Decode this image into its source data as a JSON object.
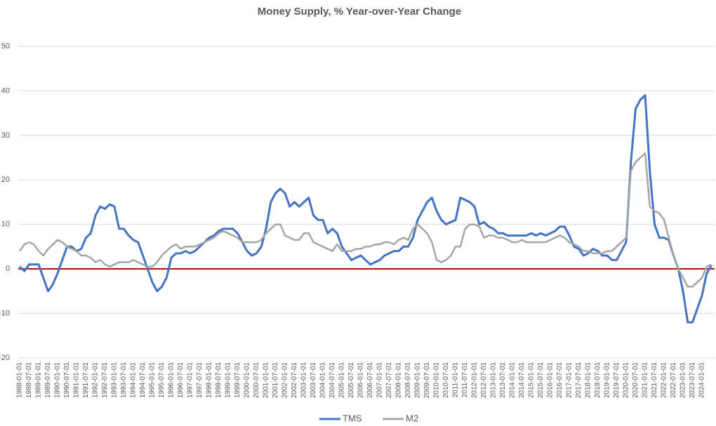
{
  "chart_data": {
    "type": "line",
    "title": "Money Supply, % Year-over-Year Change",
    "x": [
      "1988-01-01",
      null,
      "1988-07-01",
      null,
      "1989-01-01",
      null,
      "1989-07-01",
      null,
      "1990-01-01",
      null,
      "1990-07-01",
      null,
      "1991-01-01",
      null,
      "1991-07-01",
      null,
      "1992-01-01",
      null,
      "1992-07-01",
      null,
      "1993-01-01",
      null,
      "1993-07-01",
      null,
      "1994-01-01",
      null,
      "1994-07-01",
      null,
      "1995-01-01",
      null,
      "1995-07-01",
      null,
      "1996-01-01",
      null,
      "1996-07-01",
      null,
      "1997-01-01",
      null,
      "1997-07-01",
      null,
      "1998-01-01",
      null,
      "1998-07-01",
      null,
      "1999-01-01",
      null,
      "1999-07-01",
      null,
      "2000-01-01",
      null,
      "2000-07-01",
      null,
      "2001-01-01",
      null,
      "2001-07-01",
      null,
      "2002-01-01",
      null,
      "2002-07-01",
      null,
      "2003-01-01",
      null,
      "2003-07-01",
      null,
      "2004-01-01",
      null,
      "2004-07-01",
      null,
      "2005-01-01",
      null,
      "2005-07-01",
      null,
      "2006-01-01",
      null,
      "2006-07-01",
      null,
      "2007-01-01",
      null,
      "2007-07-01",
      null,
      "2008-01-01",
      null,
      "2008-07-01",
      null,
      "2009-01-01",
      null,
      "2009-07-01",
      null,
      "2010-01-01",
      null,
      "2010-07-01",
      null,
      "2011-01-01",
      null,
      "2011-07-01",
      null,
      "2012-01-01",
      null,
      "2012-07-01",
      null,
      "2013-01-01",
      null,
      "2013-07-01",
      null,
      "2014-01-01",
      null,
      "2014-07-01",
      null,
      "2015-01-01",
      null,
      "2015-07-01",
      null,
      "2016-01-01",
      null,
      "2016-07-01",
      null,
      "2017-01-01",
      null,
      "2017-07-01",
      null,
      "2018-01-01",
      null,
      "2018-07-01",
      null,
      "2019-01-01",
      null,
      "2019-07-01",
      null,
      "2020-01-01",
      null,
      "2020-07-01",
      null,
      "2021-01-01",
      null,
      "2021-07-01",
      null,
      "2022-01-01",
      null,
      "2022-07-01",
      null,
      "2023-01-01",
      null,
      "2023-07-01",
      null,
      "2024-01-01",
      null,
      null
    ],
    "series": [
      {
        "name": "TMS",
        "color": "#4472c4",
        "values": [
          0.5,
          -0.5,
          1,
          1,
          1,
          -2,
          -5,
          -3.5,
          -1,
          2,
          5,
          5,
          4,
          4.5,
          7,
          8,
          12,
          14,
          13.5,
          14.5,
          14,
          9,
          9,
          7.5,
          6.5,
          6,
          3,
          0,
          -3,
          -5,
          -4,
          -2,
          2.5,
          3.5,
          3.5,
          4,
          3.5,
          4,
          5,
          6,
          7,
          7.5,
          8.5,
          9,
          9,
          9,
          8,
          6,
          4,
          3,
          3.5,
          5,
          9,
          15,
          17,
          18,
          17,
          14,
          15,
          14,
          15,
          16,
          12,
          11,
          11,
          8,
          9,
          8,
          5,
          3.5,
          2,
          2.5,
          3,
          2,
          1,
          1.5,
          2,
          3,
          3.5,
          4,
          4,
          5,
          5,
          7,
          11,
          13,
          15,
          16,
          13,
          11,
          10,
          10.5,
          11,
          16,
          15.5,
          15,
          14,
          10,
          10.5,
          9.5,
          9,
          8,
          8,
          7.5,
          7.5,
          7.5,
          7.5,
          7.5,
          8,
          7.5,
          8,
          7.5,
          8,
          8.5,
          9.5,
          9.5,
          7.5,
          5,
          4.5,
          3,
          3.5,
          4.5,
          4,
          3,
          3,
          2,
          2,
          4,
          6,
          24,
          36,
          38,
          39,
          22,
          10,
          7,
          7,
          6.5,
          3,
          0,
          -5,
          -12,
          -12,
          -9,
          -6,
          -1,
          0.8
        ]
      },
      {
        "name": "M2",
        "color": "#a5a5a5",
        "values": [
          4,
          5.5,
          6,
          5.5,
          4,
          3,
          4.5,
          5.5,
          6.5,
          6,
          5,
          4.5,
          4,
          3,
          3,
          2.5,
          1.5,
          2,
          1,
          0.5,
          1,
          1.5,
          1.5,
          1.5,
          2,
          1.5,
          1,
          0.5,
          0.5,
          1.5,
          3,
          4,
          5,
          5.5,
          4.5,
          5,
          5,
          5,
          5.5,
          6,
          6.5,
          7,
          8,
          8.5,
          8,
          7.5,
          7,
          6,
          6,
          6,
          6,
          6.5,
          8,
          9,
          10,
          10,
          7.5,
          7,
          6.5,
          6.5,
          8,
          8,
          6,
          5.5,
          5,
          4.5,
          4,
          5.5,
          4,
          4,
          4,
          4.5,
          4.5,
          5,
          5,
          5.5,
          5.5,
          6,
          6,
          5.5,
          6.5,
          7,
          6.5,
          9,
          10,
          9,
          8,
          6,
          2,
          1.5,
          2,
          3,
          5,
          5,
          9,
          10,
          10,
          9.5,
          7,
          7.5,
          7.5,
          7,
          7,
          6.5,
          6,
          6,
          6.5,
          6,
          6,
          6,
          6,
          6,
          6.5,
          7,
          7.5,
          7,
          6,
          5.5,
          5,
          4,
          4,
          3.5,
          3.5,
          3.5,
          4,
          4,
          5,
          6,
          7,
          22,
          24,
          25,
          26,
          14,
          13,
          12.5,
          11,
          7,
          3,
          0,
          -2,
          -4,
          -4,
          -3,
          -2,
          0.5,
          1
        ]
      }
    ],
    "ylim": [
      -20,
      50
    ],
    "yticks": [
      -20,
      -10,
      0,
      10,
      20,
      30,
      40,
      50
    ],
    "grid": true,
    "reference_line": {
      "value": 0,
      "color": "#c00000"
    },
    "legend": "bottom"
  }
}
